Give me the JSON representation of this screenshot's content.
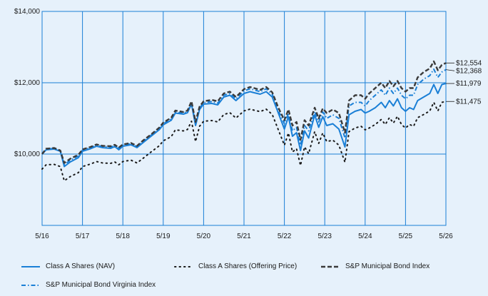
{
  "chart_data": {
    "type": "line",
    "x_labels": [
      "5/16",
      "5/17",
      "5/18",
      "5/19",
      "5/20",
      "5/21",
      "5/22",
      "5/23",
      "5/24",
      "5/25",
      "5/26"
    ],
    "y_ticks": [
      10000,
      12000,
      14000
    ],
    "y_tick_labels": [
      "$10,000",
      "$12,000",
      "$14,000"
    ],
    "ylim": [
      8000,
      14000
    ],
    "xlim": [
      0,
      10
    ],
    "grid": true,
    "legend_position": "bottom",
    "series": [
      {
        "name": "Class A Shares (NAV)",
        "style": "solid",
        "color": "#1a7fd6",
        "end_label": "$11,979",
        "points": [
          [
            0,
            10000
          ],
          [
            0.1,
            10120
          ],
          [
            0.3,
            10140
          ],
          [
            0.45,
            10080
          ],
          [
            0.55,
            9650
          ],
          [
            0.7,
            9780
          ],
          [
            0.9,
            9900
          ],
          [
            1.0,
            10080
          ],
          [
            1.2,
            10150
          ],
          [
            1.35,
            10220
          ],
          [
            1.5,
            10180
          ],
          [
            1.7,
            10160
          ],
          [
            1.8,
            10210
          ],
          [
            1.9,
            10120
          ],
          [
            2.0,
            10220
          ],
          [
            2.2,
            10260
          ],
          [
            2.35,
            10180
          ],
          [
            2.5,
            10320
          ],
          [
            2.7,
            10500
          ],
          [
            2.9,
            10680
          ],
          [
            3.0,
            10820
          ],
          [
            3.2,
            10950
          ],
          [
            3.3,
            11150
          ],
          [
            3.5,
            11120
          ],
          [
            3.6,
            11160
          ],
          [
            3.7,
            11400
          ],
          [
            3.8,
            10800
          ],
          [
            3.9,
            11250
          ],
          [
            4.0,
            11400
          ],
          [
            4.2,
            11420
          ],
          [
            4.35,
            11380
          ],
          [
            4.5,
            11600
          ],
          [
            4.65,
            11650
          ],
          [
            4.8,
            11500
          ],
          [
            5.0,
            11700
          ],
          [
            5.15,
            11750
          ],
          [
            5.25,
            11720
          ],
          [
            5.4,
            11680
          ],
          [
            5.55,
            11750
          ],
          [
            5.7,
            11600
          ],
          [
            5.85,
            11150
          ],
          [
            6.0,
            10700
          ],
          [
            6.1,
            11050
          ],
          [
            6.2,
            10500
          ],
          [
            6.3,
            10600
          ],
          [
            6.4,
            10100
          ],
          [
            6.5,
            10650
          ],
          [
            6.6,
            10450
          ],
          [
            6.75,
            11100
          ],
          [
            6.85,
            10750
          ],
          [
            6.95,
            11050
          ],
          [
            7.05,
            10800
          ],
          [
            7.2,
            10850
          ],
          [
            7.35,
            10700
          ],
          [
            7.5,
            10200
          ],
          [
            7.6,
            11100
          ],
          [
            7.75,
            11200
          ],
          [
            7.9,
            11250
          ],
          [
            8.0,
            11150
          ],
          [
            8.1,
            11200
          ],
          [
            8.25,
            11300
          ],
          [
            8.4,
            11450
          ],
          [
            8.5,
            11300
          ],
          [
            8.6,
            11500
          ],
          [
            8.7,
            11350
          ],
          [
            8.8,
            11550
          ],
          [
            8.9,
            11300
          ],
          [
            9.0,
            11200
          ],
          [
            9.1,
            11300
          ],
          [
            9.2,
            11250
          ],
          [
            9.3,
            11500
          ],
          [
            9.45,
            11600
          ],
          [
            9.6,
            11700
          ],
          [
            9.7,
            11950
          ],
          [
            9.8,
            11700
          ],
          [
            9.9,
            11950
          ],
          [
            10,
            11979
          ]
        ]
      },
      {
        "name": "Class A Shares (Offering Price)",
        "style": "dotted",
        "color": "#1a1a1a",
        "end_label": "$11,475",
        "points": [
          [
            0,
            9580
          ],
          [
            0.1,
            9700
          ],
          [
            0.3,
            9710
          ],
          [
            0.45,
            9650
          ],
          [
            0.55,
            9250
          ],
          [
            0.7,
            9370
          ],
          [
            0.9,
            9480
          ],
          [
            1.0,
            9650
          ],
          [
            1.2,
            9720
          ],
          [
            1.35,
            9790
          ],
          [
            1.5,
            9750
          ],
          [
            1.7,
            9740
          ],
          [
            1.8,
            9780
          ],
          [
            1.9,
            9700
          ],
          [
            2.0,
            9790
          ],
          [
            2.2,
            9830
          ],
          [
            2.35,
            9750
          ],
          [
            2.5,
            9880
          ],
          [
            2.7,
            10060
          ],
          [
            2.9,
            10230
          ],
          [
            3.0,
            10370
          ],
          [
            3.2,
            10490
          ],
          [
            3.3,
            10680
          ],
          [
            3.5,
            10650
          ],
          [
            3.6,
            10690
          ],
          [
            3.7,
            10920
          ],
          [
            3.8,
            10350
          ],
          [
            3.9,
            10780
          ],
          [
            4.0,
            10920
          ],
          [
            4.2,
            10940
          ],
          [
            4.35,
            10900
          ],
          [
            4.5,
            11110
          ],
          [
            4.65,
            11160
          ],
          [
            4.8,
            11010
          ],
          [
            5.0,
            11210
          ],
          [
            5.15,
            11260
          ],
          [
            5.25,
            11230
          ],
          [
            5.4,
            11190
          ],
          [
            5.55,
            11260
          ],
          [
            5.7,
            11110
          ],
          [
            5.85,
            10680
          ],
          [
            6.0,
            10250
          ],
          [
            6.1,
            10590
          ],
          [
            6.2,
            10060
          ],
          [
            6.3,
            10150
          ],
          [
            6.4,
            9680
          ],
          [
            6.5,
            10200
          ],
          [
            6.6,
            10010
          ],
          [
            6.75,
            10630
          ],
          [
            6.85,
            10300
          ],
          [
            6.95,
            10590
          ],
          [
            7.05,
            10350
          ],
          [
            7.2,
            10390
          ],
          [
            7.35,
            10250
          ],
          [
            7.5,
            9770
          ],
          [
            7.6,
            10630
          ],
          [
            7.75,
            10730
          ],
          [
            7.9,
            10780
          ],
          [
            8.0,
            10680
          ],
          [
            8.1,
            10730
          ],
          [
            8.25,
            10830
          ],
          [
            8.4,
            10970
          ],
          [
            8.5,
            10830
          ],
          [
            8.6,
            11020
          ],
          [
            8.7,
            10870
          ],
          [
            8.8,
            11060
          ],
          [
            8.9,
            10830
          ],
          [
            9.0,
            10730
          ],
          [
            9.1,
            10830
          ],
          [
            9.2,
            10780
          ],
          [
            9.3,
            11020
          ],
          [
            9.45,
            11110
          ],
          [
            9.6,
            11210
          ],
          [
            9.7,
            11450
          ],
          [
            9.8,
            11210
          ],
          [
            9.9,
            11450
          ],
          [
            10,
            11475
          ]
        ]
      },
      {
        "name": "S&P Municipal Bond Index",
        "style": "dashed",
        "color": "#3a3a3a",
        "end_label": "$12,554",
        "points": [
          [
            0,
            10000
          ],
          [
            0.1,
            10150
          ],
          [
            0.3,
            10170
          ],
          [
            0.45,
            10100
          ],
          [
            0.55,
            9750
          ],
          [
            0.7,
            9870
          ],
          [
            0.9,
            9980
          ],
          [
            1.0,
            10130
          ],
          [
            1.2,
            10200
          ],
          [
            1.35,
            10270
          ],
          [
            1.5,
            10230
          ],
          [
            1.7,
            10220
          ],
          [
            1.8,
            10260
          ],
          [
            1.9,
            10180
          ],
          [
            2.0,
            10270
          ],
          [
            2.2,
            10310
          ],
          [
            2.35,
            10230
          ],
          [
            2.5,
            10380
          ],
          [
            2.7,
            10550
          ],
          [
            2.9,
            10740
          ],
          [
            3.0,
            10880
          ],
          [
            3.2,
            11020
          ],
          [
            3.3,
            11220
          ],
          [
            3.5,
            11180
          ],
          [
            3.6,
            11220
          ],
          [
            3.7,
            11480
          ],
          [
            3.8,
            10900
          ],
          [
            3.9,
            11330
          ],
          [
            4.0,
            11480
          ],
          [
            4.2,
            11520
          ],
          [
            4.35,
            11480
          ],
          [
            4.5,
            11700
          ],
          [
            4.65,
            11750
          ],
          [
            4.8,
            11600
          ],
          [
            5.0,
            11820
          ],
          [
            5.15,
            11880
          ],
          [
            5.25,
            11850
          ],
          [
            5.4,
            11800
          ],
          [
            5.55,
            11880
          ],
          [
            5.7,
            11730
          ],
          [
            5.85,
            11300
          ],
          [
            6.0,
            10950
          ],
          [
            6.1,
            11250
          ],
          [
            6.2,
            10800
          ],
          [
            6.3,
            10900
          ],
          [
            6.4,
            10400
          ],
          [
            6.5,
            10950
          ],
          [
            6.6,
            10800
          ],
          [
            6.75,
            11300
          ],
          [
            6.85,
            11000
          ],
          [
            6.95,
            11280
          ],
          [
            7.05,
            11150
          ],
          [
            7.2,
            11250
          ],
          [
            7.35,
            11150
          ],
          [
            7.5,
            10600
          ],
          [
            7.6,
            11500
          ],
          [
            7.75,
            11650
          ],
          [
            7.9,
            11650
          ],
          [
            8.0,
            11550
          ],
          [
            8.1,
            11700
          ],
          [
            8.25,
            11850
          ],
          [
            8.4,
            12000
          ],
          [
            8.5,
            11850
          ],
          [
            8.6,
            12050
          ],
          [
            8.7,
            11900
          ],
          [
            8.8,
            12050
          ],
          [
            8.9,
            11850
          ],
          [
            9.0,
            11750
          ],
          [
            9.1,
            11850
          ],
          [
            9.2,
            11850
          ],
          [
            9.3,
            12150
          ],
          [
            9.45,
            12300
          ],
          [
            9.6,
            12400
          ],
          [
            9.7,
            12600
          ],
          [
            9.8,
            12350
          ],
          [
            9.9,
            12500
          ],
          [
            10,
            12554
          ]
        ]
      },
      {
        "name": "S&P Municipal Bond Virginia Index",
        "style": "dashdot",
        "color": "#1a7fd6",
        "end_label": "$12,368",
        "points": [
          [
            0,
            10000
          ],
          [
            0.1,
            10140
          ],
          [
            0.3,
            10160
          ],
          [
            0.45,
            10090
          ],
          [
            0.55,
            9700
          ],
          [
            0.7,
            9830
          ],
          [
            0.9,
            9950
          ],
          [
            1.0,
            10110
          ],
          [
            1.2,
            10180
          ],
          [
            1.35,
            10250
          ],
          [
            1.5,
            10210
          ],
          [
            1.7,
            10200
          ],
          [
            1.8,
            10240
          ],
          [
            1.9,
            10160
          ],
          [
            2.0,
            10250
          ],
          [
            2.2,
            10290
          ],
          [
            2.35,
            10210
          ],
          [
            2.5,
            10360
          ],
          [
            2.7,
            10530
          ],
          [
            2.9,
            10710
          ],
          [
            3.0,
            10850
          ],
          [
            3.2,
            10990
          ],
          [
            3.3,
            11180
          ],
          [
            3.5,
            11150
          ],
          [
            3.6,
            11190
          ],
          [
            3.7,
            11440
          ],
          [
            3.8,
            10850
          ],
          [
            3.9,
            11290
          ],
          [
            4.0,
            11440
          ],
          [
            4.2,
            11470
          ],
          [
            4.35,
            11430
          ],
          [
            4.5,
            11650
          ],
          [
            4.65,
            11700
          ],
          [
            4.8,
            11550
          ],
          [
            5.0,
            11770
          ],
          [
            5.15,
            11830
          ],
          [
            5.25,
            11800
          ],
          [
            5.4,
            11750
          ],
          [
            5.55,
            11830
          ],
          [
            5.7,
            11680
          ],
          [
            5.85,
            11220
          ],
          [
            6.0,
            10850
          ],
          [
            6.1,
            11150
          ],
          [
            6.2,
            10650
          ],
          [
            6.3,
            10750
          ],
          [
            6.4,
            10250
          ],
          [
            6.5,
            10800
          ],
          [
            6.6,
            10650
          ],
          [
            6.75,
            11200
          ],
          [
            6.85,
            10900
          ],
          [
            6.95,
            11180
          ],
          [
            7.05,
            11000
          ],
          [
            7.2,
            11100
          ],
          [
            7.35,
            11000
          ],
          [
            7.5,
            10450
          ],
          [
            7.6,
            11350
          ],
          [
            7.75,
            11450
          ],
          [
            7.9,
            11450
          ],
          [
            8.0,
            11350
          ],
          [
            8.1,
            11500
          ],
          [
            8.25,
            11650
          ],
          [
            8.4,
            11800
          ],
          [
            8.5,
            11650
          ],
          [
            8.6,
            11850
          ],
          [
            8.7,
            11700
          ],
          [
            8.8,
            11850
          ],
          [
            8.9,
            11650
          ],
          [
            9.0,
            11550
          ],
          [
            9.1,
            11650
          ],
          [
            9.2,
            11650
          ],
          [
            9.3,
            11950
          ],
          [
            9.45,
            12100
          ],
          [
            9.6,
            12200
          ],
          [
            9.7,
            12380
          ],
          [
            9.8,
            12150
          ],
          [
            9.9,
            12300
          ],
          [
            10,
            12368
          ]
        ]
      }
    ]
  }
}
